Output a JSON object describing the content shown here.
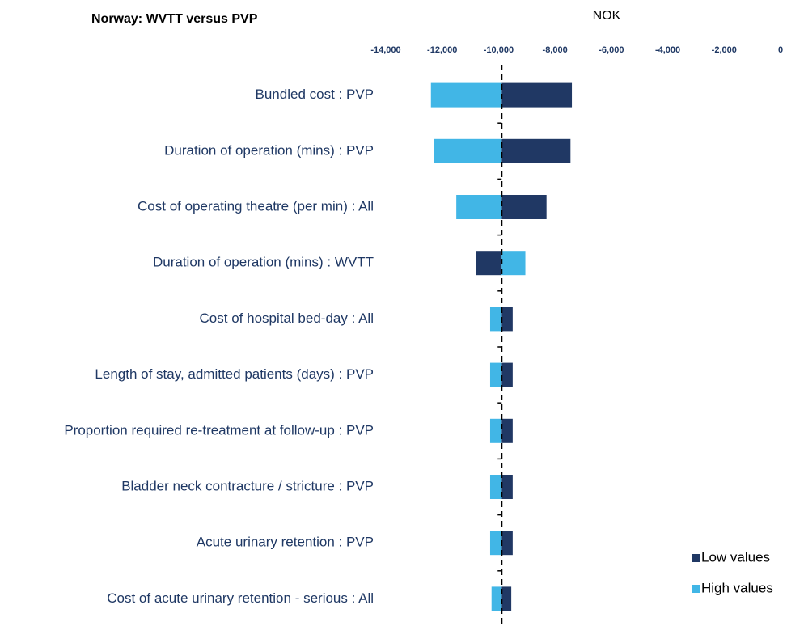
{
  "chart_data": {
    "type": "tornado",
    "title": "Norway: WVTT versus PVP",
    "x_label": "NOK",
    "base": -9890,
    "xlim": [
      -14000,
      0
    ],
    "xticks": [
      {
        "value": -14000,
        "label": "-14,000"
      },
      {
        "value": -12000,
        "label": "-12,000"
      },
      {
        "value": -10000,
        "label": "-10,000"
      },
      {
        "value": -8000,
        "label": "-8,000"
      },
      {
        "value": -6000,
        "label": "-6,000"
      },
      {
        "value": -4000,
        "label": "-4,000"
      },
      {
        "value": -2000,
        "label": "-2,000"
      },
      0
    ],
    "categories": [
      "Bundled cost : PVP",
      "Duration of operation (mins) : PVP",
      "Cost of operating theatre (per min) : All",
      "Duration of operation (mins) : WVTT",
      "Cost of hospital bed-day : All",
      "Length of stay, admitted patients (days) : PVP",
      "Proportion required re-treatment at follow-up : PVP",
      "Bladder neck contracture / stricture : PVP",
      "Acute urinary retention : PVP",
      "Cost of acute urinary retention - serious : All"
    ],
    "series": [
      {
        "name": "Low values",
        "color": "#203864",
        "values": [
          -7400,
          -7450,
          -8300,
          -10800,
          -9500,
          -9500,
          -9500,
          -9500,
          -9500,
          -9550
        ]
      },
      {
        "name": "High values",
        "color": "#41b6e6",
        "values": [
          -12400,
          -12300,
          -11500,
          -9050,
          -10300,
          -10300,
          -10300,
          -10300,
          -10300,
          -10250
        ]
      }
    ]
  }
}
